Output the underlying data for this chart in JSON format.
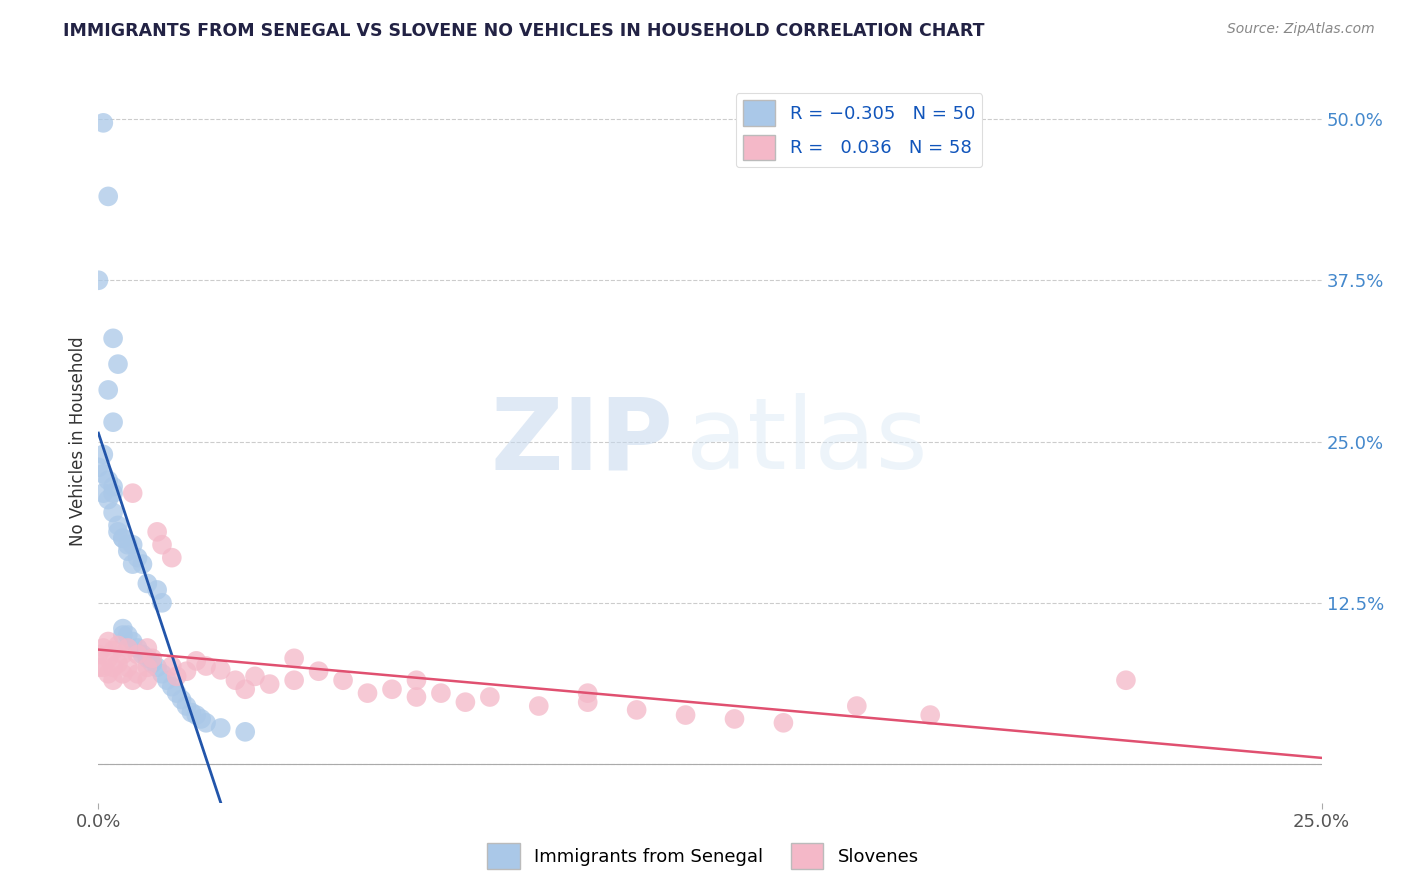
{
  "title": "IMMIGRANTS FROM SENEGAL VS SLOVENE NO VEHICLES IN HOUSEHOLD CORRELATION CHART",
  "source": "Source: ZipAtlas.com",
  "ylabel": "No Vehicles in Household",
  "x_min": 0.0,
  "x_max": 0.25,
  "y_min": -0.03,
  "y_max": 0.53,
  "x_ticks": [
    0.0,
    0.25
  ],
  "x_tick_labels": [
    "0.0%",
    "25.0%"
  ],
  "y_ticks": [
    0.0,
    0.125,
    0.25,
    0.375,
    0.5
  ],
  "y_tick_labels": [
    "",
    "12.5%",
    "25.0%",
    "37.5%",
    "50.0%"
  ],
  "blue_R": -0.305,
  "blue_N": 50,
  "pink_R": 0.036,
  "pink_N": 58,
  "blue_color": "#aac8e8",
  "blue_edge_color": "#aac8e8",
  "blue_line_color": "#2255aa",
  "pink_color": "#f4b8c8",
  "pink_edge_color": "#f4b8c8",
  "pink_line_color": "#e05070",
  "blue_x": [
    0.001,
    0.002,
    0.003,
    0.004,
    0.0,
    0.002,
    0.003,
    0.001,
    0.0,
    0.001,
    0.002,
    0.003,
    0.001,
    0.002,
    0.003,
    0.004,
    0.005,
    0.006,
    0.007,
    0.003,
    0.004,
    0.005,
    0.006,
    0.007,
    0.008,
    0.009,
    0.01,
    0.012,
    0.013,
    0.005,
    0.005,
    0.006,
    0.007,
    0.008,
    0.009,
    0.01,
    0.011,
    0.012,
    0.013,
    0.014,
    0.015,
    0.016,
    0.017,
    0.018,
    0.019,
    0.02,
    0.021,
    0.022,
    0.025,
    0.03
  ],
  "blue_y": [
    0.497,
    0.44,
    0.33,
    0.31,
    0.375,
    0.29,
    0.265,
    0.24,
    0.23,
    0.225,
    0.22,
    0.215,
    0.21,
    0.205,
    0.195,
    0.185,
    0.175,
    0.165,
    0.155,
    0.21,
    0.18,
    0.175,
    0.17,
    0.17,
    0.16,
    0.155,
    0.14,
    0.135,
    0.125,
    0.105,
    0.1,
    0.1,
    0.095,
    0.09,
    0.085,
    0.082,
    0.078,
    0.075,
    0.07,
    0.065,
    0.06,
    0.055,
    0.05,
    0.045,
    0.04,
    0.038,
    0.035,
    0.032,
    0.028,
    0.025
  ],
  "pink_x": [
    0.0,
    0.0,
    0.001,
    0.001,
    0.002,
    0.002,
    0.002,
    0.003,
    0.003,
    0.003,
    0.004,
    0.004,
    0.005,
    0.005,
    0.006,
    0.006,
    0.007,
    0.007,
    0.008,
    0.008,
    0.01,
    0.01,
    0.01,
    0.011,
    0.012,
    0.013,
    0.015,
    0.015,
    0.016,
    0.018,
    0.02,
    0.022,
    0.025,
    0.028,
    0.03,
    0.032,
    0.035,
    0.04,
    0.04,
    0.045,
    0.05,
    0.055,
    0.06,
    0.065,
    0.065,
    0.07,
    0.075,
    0.08,
    0.09,
    0.1,
    0.1,
    0.11,
    0.12,
    0.13,
    0.14,
    0.155,
    0.17,
    0.21
  ],
  "pink_y": [
    0.085,
    0.075,
    0.09,
    0.075,
    0.095,
    0.082,
    0.07,
    0.088,
    0.075,
    0.065,
    0.092,
    0.078,
    0.085,
    0.07,
    0.09,
    0.075,
    0.21,
    0.065,
    0.085,
    0.07,
    0.09,
    0.075,
    0.065,
    0.082,
    0.18,
    0.17,
    0.16,
    0.076,
    0.068,
    0.072,
    0.08,
    0.076,
    0.073,
    0.065,
    0.058,
    0.068,
    0.062,
    0.082,
    0.065,
    0.072,
    0.065,
    0.055,
    0.058,
    0.065,
    0.052,
    0.055,
    0.048,
    0.052,
    0.045,
    0.048,
    0.055,
    0.042,
    0.038,
    0.035,
    0.032,
    0.045,
    0.038,
    0.065
  ],
  "legend_labels": [
    "Immigrants from Senegal",
    "Slovenes"
  ],
  "watermark_zip": "ZIP",
  "watermark_atlas": "atlas",
  "grid_color": "#cccccc",
  "background_color": "#ffffff",
  "title_color": "#222244",
  "source_color": "#888888",
  "ylabel_color": "#333333",
  "tick_color": "#555555",
  "ytick_color": "#4488cc"
}
